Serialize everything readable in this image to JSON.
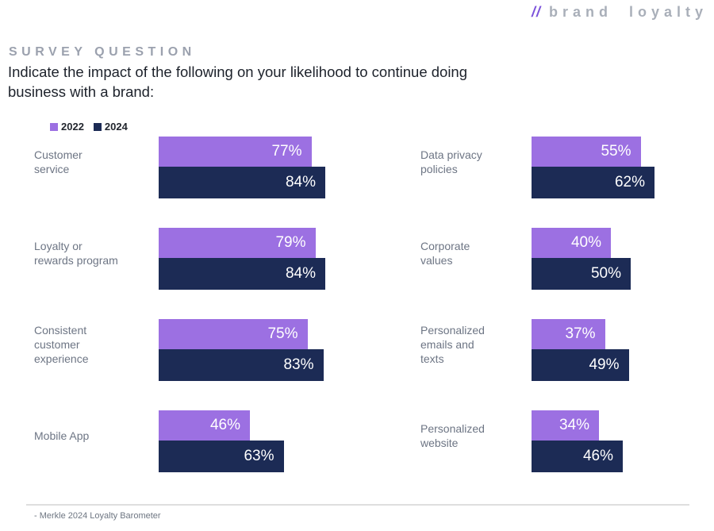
{
  "logo": {
    "slashes": "//",
    "text": "brand loyalty"
  },
  "header": {
    "eyebrow": "SURVEY QUESTION",
    "question": "Indicate the impact of the following on your likelihood to continue doing business with a brand:"
  },
  "legend": {
    "items": [
      {
        "label": "2022",
        "color": "#9C70E2"
      },
      {
        "label": "2024",
        "color": "#1C2B55"
      }
    ]
  },
  "chart_data": {
    "type": "bar",
    "orientation": "horizontal",
    "title": "Indicate the impact of the following on your likelihood to continue doing business with a brand:",
    "categories": [
      "Customer service",
      "Loyalty or rewards program",
      "Consistent customer experience",
      "Mobile App",
      "Data privacy policies",
      "Corporate values",
      "Personalized emails and texts",
      "Personalized website"
    ],
    "series": [
      {
        "name": "2022",
        "color": "#9C70E2",
        "values": [
          77,
          79,
          75,
          46,
          55,
          40,
          37,
          34
        ]
      },
      {
        "name": "2024",
        "color": "#1C2B55",
        "values": [
          84,
          84,
          83,
          63,
          62,
          50,
          49,
          46
        ]
      }
    ],
    "value_labels": {
      "y2022": [
        "77%",
        "79%",
        "75%",
        "46%",
        "55%",
        "40%",
        "37%",
        "34%"
      ],
      "y2024": [
        "84%",
        "84%",
        "83%",
        "63%",
        "62%",
        "50%",
        "49%",
        "46%"
      ]
    },
    "category_display": [
      "Customer\nservice",
      "Loyalty or\nrewards program",
      "Consistent\ncustomer\nexperience",
      "Mobile App",
      "Data privacy\npolicies",
      "Corporate\nvalues",
      "Personalized\nemails and\ntexts",
      "Personalized\nwebsite"
    ],
    "unit": "%",
    "xlim": [
      0,
      100
    ],
    "grid": false,
    "legend_position": "top-left",
    "layout_columns": {
      "left_indices": [
        0,
        1,
        2,
        3
      ],
      "right_indices": [
        4,
        5,
        6,
        7
      ]
    }
  },
  "footer": {
    "source": "- Merkle 2024 Loyalty Barometer"
  }
}
